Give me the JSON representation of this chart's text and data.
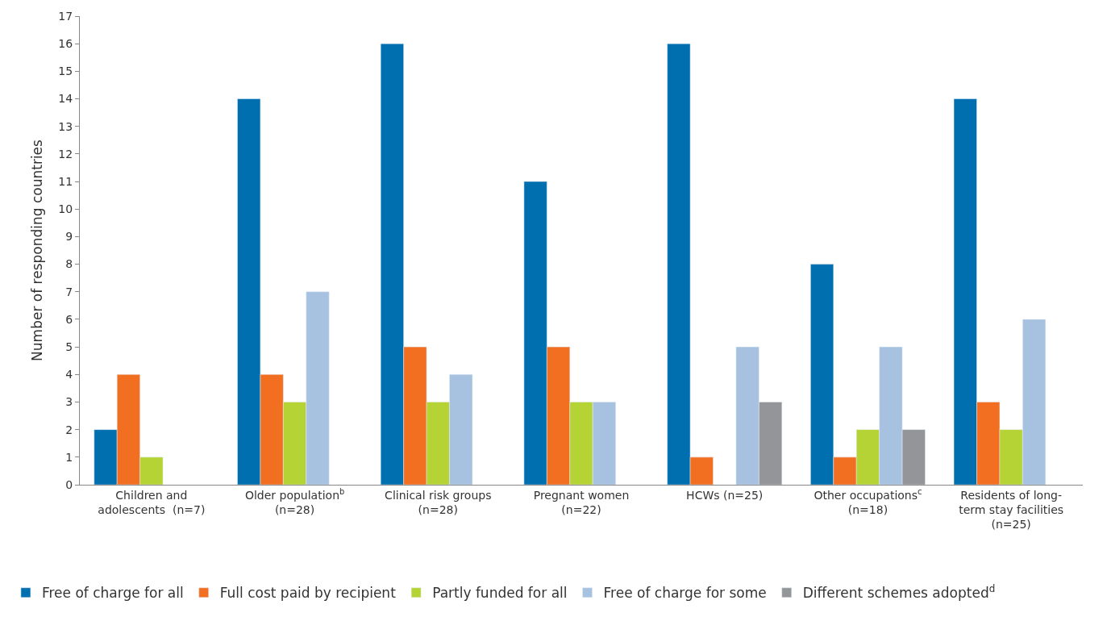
{
  "chart_data": {
    "type": "bar",
    "ylabel": "Number of responding countries",
    "categories": [
      "Children and\nadolescents  (n=7)",
      "Older population$^{b}$\n(n=28)",
      "Clinical risk groups\n(n=28)",
      "Pregnant women\n(n=22)",
      "HCWs (n=25)",
      "Other occupations$^{c}$\n(n=18)",
      "Residents of long-\nterm stay facilities\n(n=25)"
    ],
    "series": [
      {
        "name": "Free of charge for all",
        "color": "#006fb0",
        "values": [
          2,
          14,
          16,
          11,
          16,
          8,
          14
        ]
      },
      {
        "name": "Full cost paid by recipient",
        "color": "#f26f21",
        "values": [
          4,
          4,
          5,
          5,
          1,
          1,
          3
        ]
      },
      {
        "name": "Partly funded for all",
        "color": "#b5d334",
        "values": [
          1,
          3,
          3,
          3,
          null,
          2,
          2
        ]
      },
      {
        "name": "Free of charge for some",
        "color": "#a6c2e0",
        "values": [
          null,
          7,
          4,
          3,
          5,
          5,
          6
        ]
      },
      {
        "name": "Different schemes adopted$^{d}$",
        "color": "#939598",
        "values": [
          null,
          null,
          null,
          null,
          3,
          2,
          null
        ]
      }
    ],
    "ylim": [
      0,
      17
    ],
    "yticks": [
      0,
      1,
      2,
      3,
      4,
      5,
      6,
      7,
      8,
      9,
      10,
      11,
      12,
      13,
      14,
      15,
      16,
      17
    ],
    "legend": "bottom"
  }
}
